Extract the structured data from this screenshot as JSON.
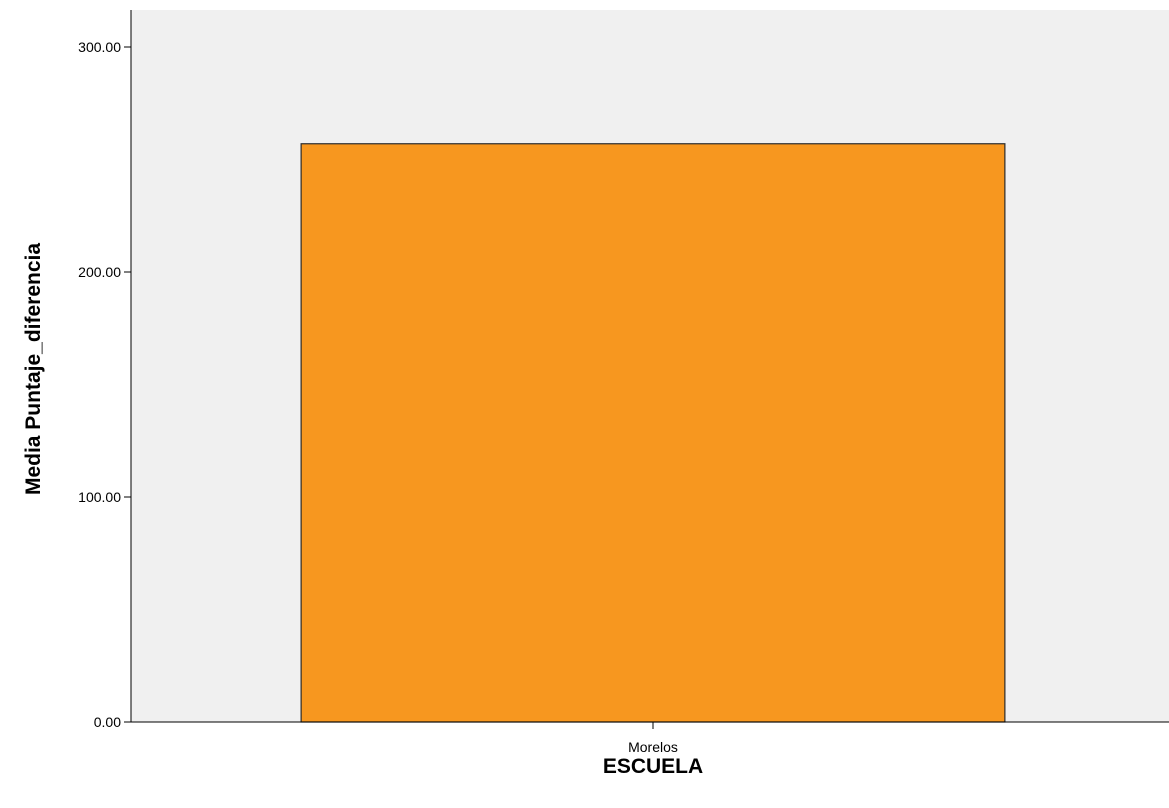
{
  "chart_data": {
    "type": "bar",
    "title": "",
    "xlabel": "ESCUELA",
    "ylabel": "Media Puntaje_diferencia",
    "categories": [
      "Morelos"
    ],
    "values": [
      257
    ],
    "ylim": [
      0,
      300
    ],
    "yticks": [
      0,
      100,
      200,
      300
    ],
    "ytick_labels": [
      "0.00",
      "100.00",
      "200.00",
      "300.00"
    ],
    "grid": false,
    "legend": "none"
  },
  "colors": {
    "plot_background": "#f0f0f0",
    "bar_fill": "#f7971f",
    "bar_stroke": "#2b2b2b",
    "axis": "#000000"
  }
}
